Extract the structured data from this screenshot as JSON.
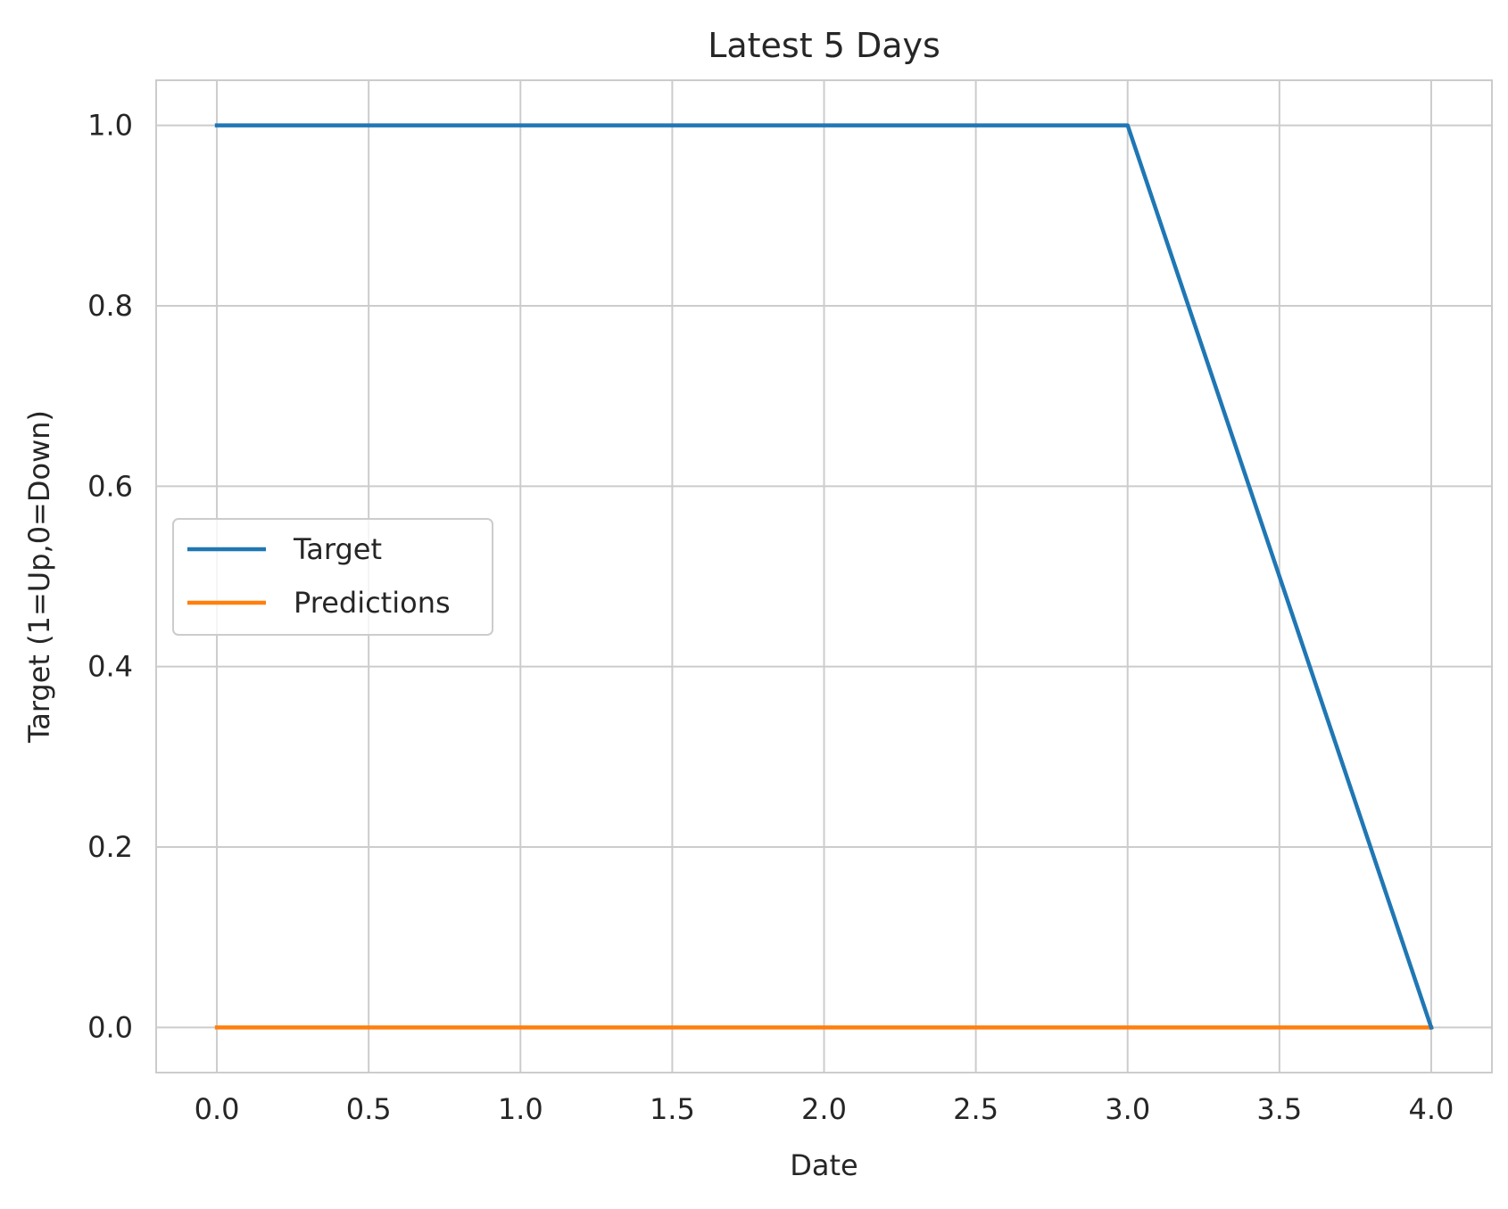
{
  "chart_data": {
    "type": "line",
    "title": "Latest 5 Days",
    "xlabel": "Date",
    "ylabel": "Target (1=Up,0=Down)",
    "x": [
      0,
      1,
      2,
      3,
      4
    ],
    "series": [
      {
        "name": "Target",
        "color": "#1f77b4",
        "values": [
          1,
          1,
          1,
          1,
          0
        ]
      },
      {
        "name": "Predictions",
        "color": "#ff7f0e",
        "values": [
          0,
          0,
          0,
          0,
          0
        ]
      }
    ],
    "xlim": [
      -0.2,
      4.2
    ],
    "ylim": [
      -0.05,
      1.05
    ],
    "xticks": [
      0.0,
      0.5,
      1.0,
      1.5,
      2.0,
      2.5,
      3.0,
      3.5,
      4.0
    ],
    "xtick_labels": [
      "0.0",
      "0.5",
      "1.0",
      "1.5",
      "2.0",
      "2.5",
      "3.0",
      "3.5",
      "4.0"
    ],
    "yticks": [
      0.0,
      0.2,
      0.4,
      0.6,
      0.8,
      1.0
    ],
    "ytick_labels": [
      "0.0",
      "0.2",
      "0.4",
      "0.6",
      "0.8",
      "1.0"
    ],
    "grid": true,
    "legend_position": "center-left",
    "colors": {
      "grid": "#cccccc",
      "spine": "#cccccc",
      "text": "#262626"
    }
  }
}
